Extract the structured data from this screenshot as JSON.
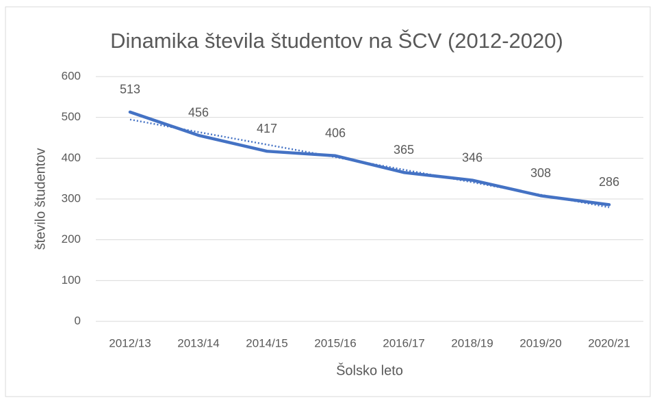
{
  "chart_data": {
    "type": "line",
    "title": "Dinamika števila študentov na ŠCV (2012-2020)",
    "x_label": "Šolsko leto",
    "y_label": "število študentov",
    "categories": [
      "2012/13",
      "2013/14",
      "2014/15",
      "2015/16",
      "2016/17",
      "2018/19",
      "2019/20",
      "2020/21"
    ],
    "series": [
      {
        "name": "Število študentov",
        "color": "#4472c4",
        "values": [
          513,
          456,
          417,
          406,
          365,
          346,
          308,
          286
        ]
      }
    ],
    "ylim": [
      0,
      600
    ],
    "yticks": [
      0,
      100,
      200,
      300,
      400,
      500,
      600
    ],
    "grid": true,
    "trendline": "linear",
    "data_labels": true
  }
}
